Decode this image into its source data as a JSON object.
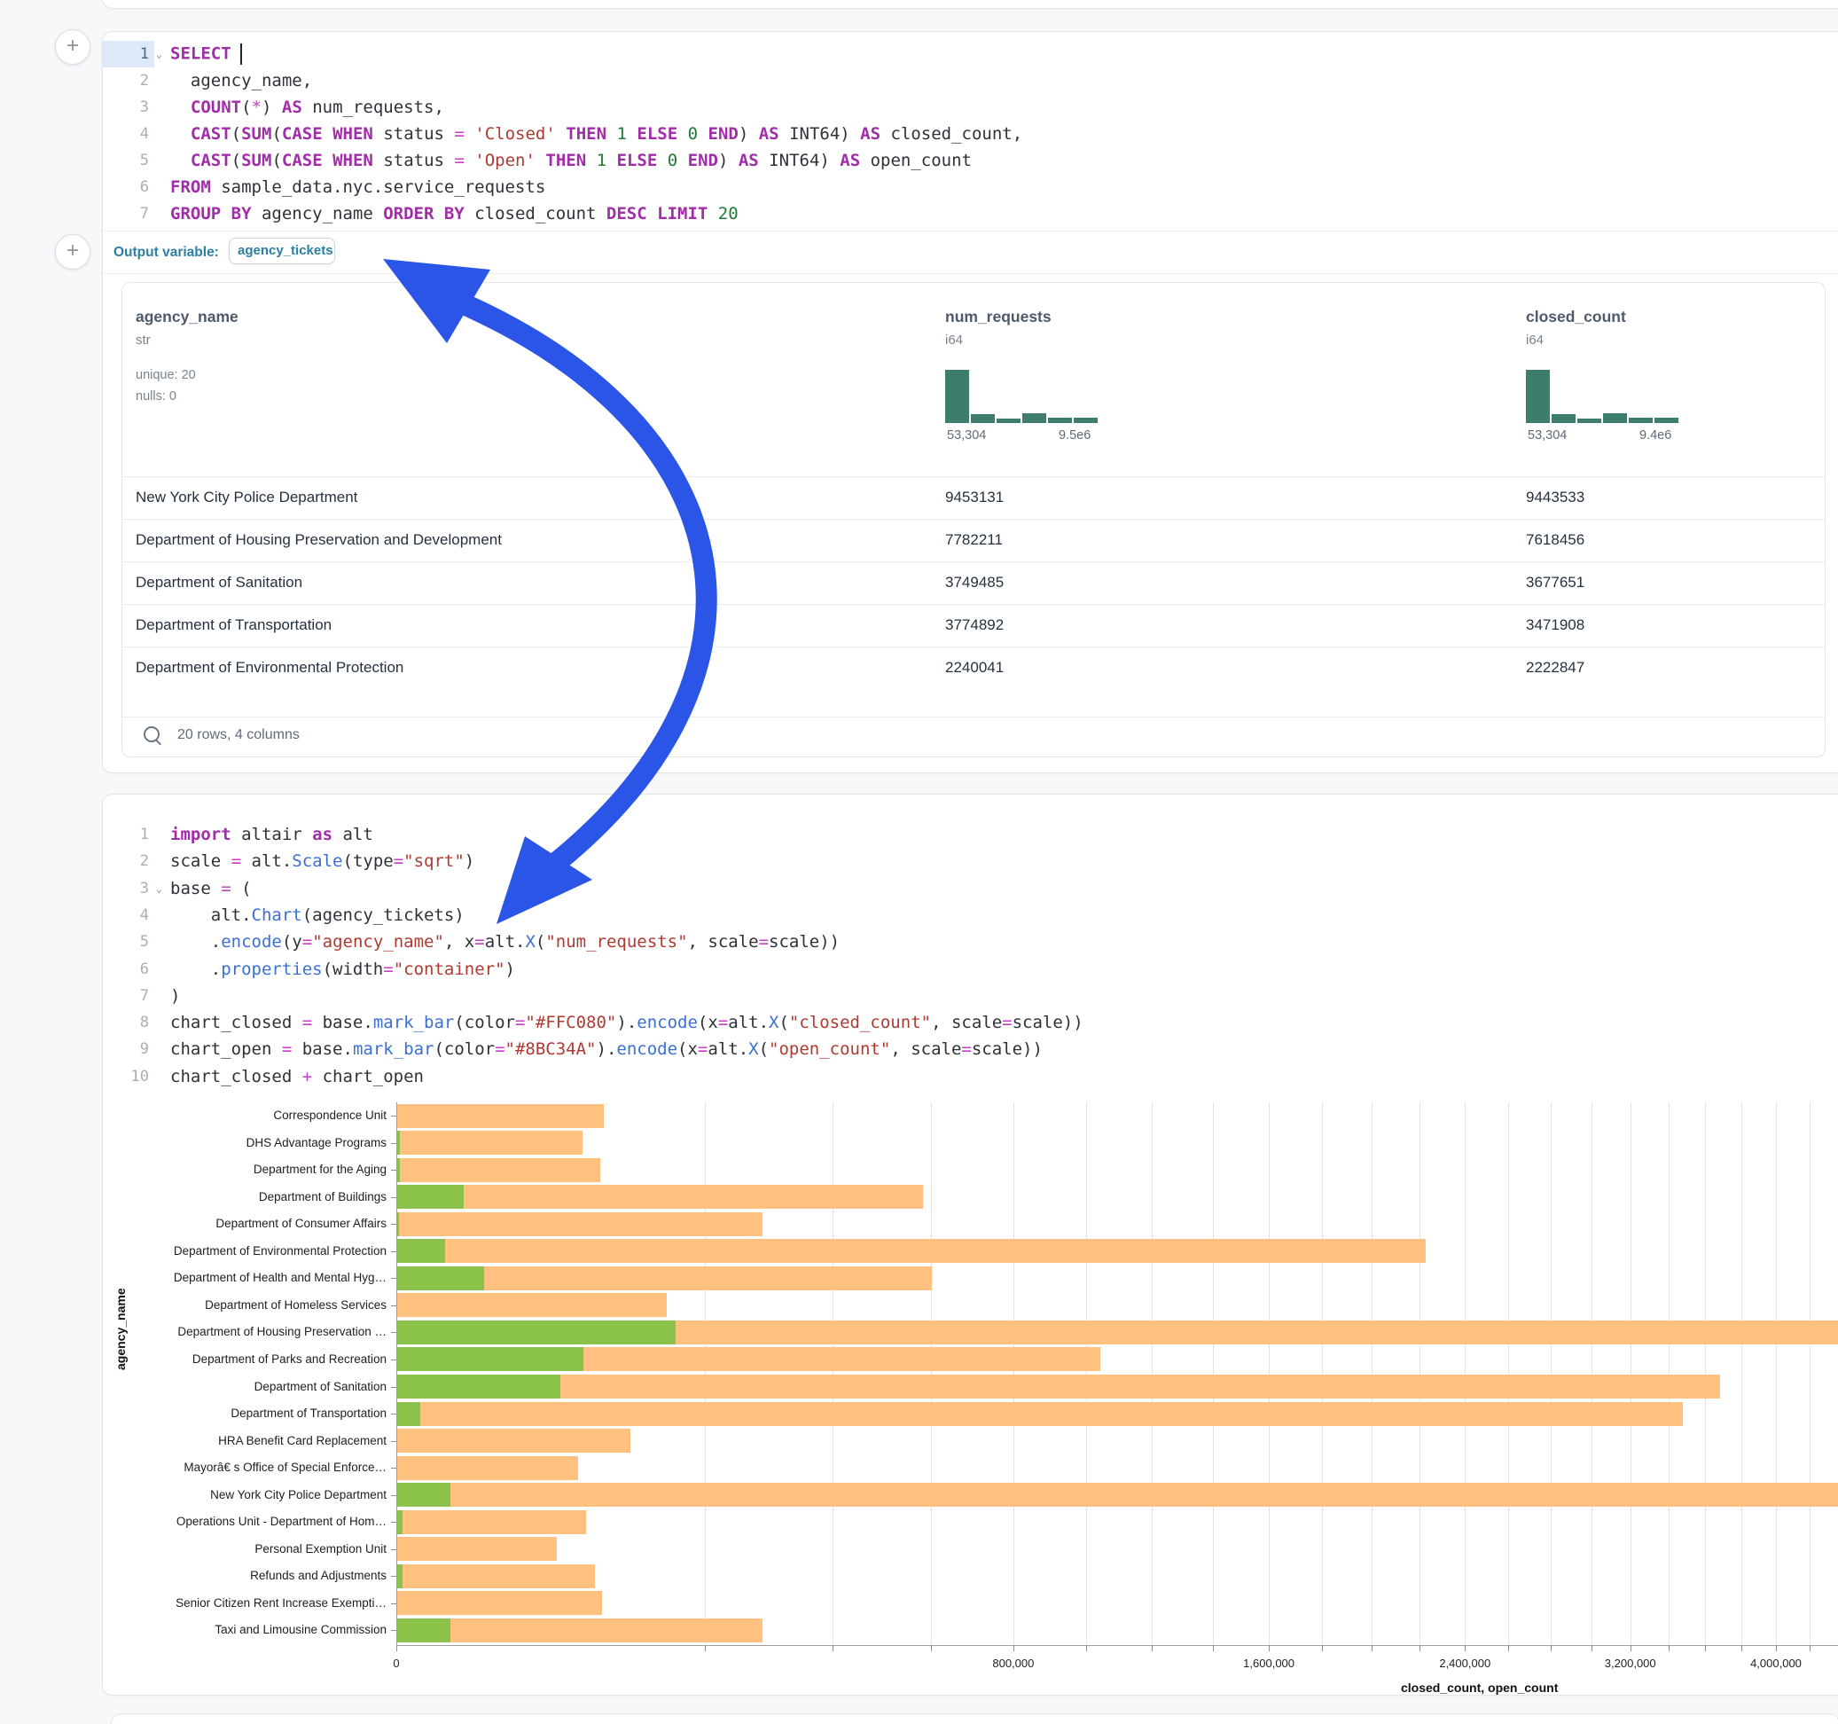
{
  "output_variable": {
    "label": "Output variable:",
    "value": "agency_tickets"
  },
  "add_button_glyph": "+",
  "sql_cell": {
    "lines": [
      {
        "num": "1",
        "active": true,
        "chevron": true,
        "cursor": true,
        "tokens": [
          [
            "kw",
            "SELECT"
          ]
        ]
      },
      {
        "num": "2",
        "tokens": [
          [
            "pl",
            "  agency_name,"
          ]
        ]
      },
      {
        "num": "3",
        "tokens": [
          [
            "pl",
            "  "
          ],
          [
            "kw",
            "COUNT"
          ],
          [
            "pl",
            "("
          ],
          [
            "op",
            "*"
          ],
          [
            "pl",
            ") "
          ],
          [
            "kw",
            "AS"
          ],
          [
            "pl",
            " num_requests,"
          ]
        ]
      },
      {
        "num": "4",
        "tokens": [
          [
            "pl",
            "  "
          ],
          [
            "kw",
            "CAST"
          ],
          [
            "pl",
            "("
          ],
          [
            "kw",
            "SUM"
          ],
          [
            "pl",
            "("
          ],
          [
            "kw",
            "CASE"
          ],
          [
            "pl",
            " "
          ],
          [
            "kw",
            "WHEN"
          ],
          [
            "pl",
            " status "
          ],
          [
            "op",
            "="
          ],
          [
            "pl",
            " "
          ],
          [
            "str",
            "'Closed'"
          ],
          [
            "pl",
            " "
          ],
          [
            "kw",
            "THEN"
          ],
          [
            "pl",
            " "
          ],
          [
            "num",
            "1"
          ],
          [
            "pl",
            " "
          ],
          [
            "kw",
            "ELSE"
          ],
          [
            "pl",
            " "
          ],
          [
            "num",
            "0"
          ],
          [
            "pl",
            " "
          ],
          [
            "kw",
            "END"
          ],
          [
            "pl",
            ") "
          ],
          [
            "kw",
            "AS"
          ],
          [
            "pl",
            " INT64) "
          ],
          [
            "kw",
            "AS"
          ],
          [
            "pl",
            " closed_count,"
          ]
        ]
      },
      {
        "num": "5",
        "tokens": [
          [
            "pl",
            "  "
          ],
          [
            "kw",
            "CAST"
          ],
          [
            "pl",
            "("
          ],
          [
            "kw",
            "SUM"
          ],
          [
            "pl",
            "("
          ],
          [
            "kw",
            "CASE"
          ],
          [
            "pl",
            " "
          ],
          [
            "kw",
            "WHEN"
          ],
          [
            "pl",
            " status "
          ],
          [
            "op",
            "="
          ],
          [
            "pl",
            " "
          ],
          [
            "str",
            "'Open'"
          ],
          [
            "pl",
            " "
          ],
          [
            "kw",
            "THEN"
          ],
          [
            "pl",
            " "
          ],
          [
            "num",
            "1"
          ],
          [
            "pl",
            " "
          ],
          [
            "kw",
            "ELSE"
          ],
          [
            "pl",
            " "
          ],
          [
            "num",
            "0"
          ],
          [
            "pl",
            " "
          ],
          [
            "kw",
            "END"
          ],
          [
            "pl",
            ") "
          ],
          [
            "kw",
            "AS"
          ],
          [
            "pl",
            " INT64) "
          ],
          [
            "kw",
            "AS"
          ],
          [
            "pl",
            " open_count"
          ]
        ]
      },
      {
        "num": "6",
        "tokens": [
          [
            "kw",
            "FROM"
          ],
          [
            "pl",
            " sample_data.nyc.service_requests"
          ]
        ]
      },
      {
        "num": "7",
        "tokens": [
          [
            "kw",
            "GROUP BY"
          ],
          [
            "pl",
            " agency_name "
          ],
          [
            "kw",
            "ORDER BY"
          ],
          [
            "pl",
            " closed_count "
          ],
          [
            "kw",
            "DESC"
          ],
          [
            "pl",
            " "
          ],
          [
            "kw",
            "LIMIT"
          ],
          [
            "pl",
            " "
          ],
          [
            "num",
            "20"
          ]
        ]
      }
    ]
  },
  "table": {
    "columns": [
      {
        "name": "agency_name",
        "type": "str",
        "meta": [
          "unique: 20",
          "nulls: 0"
        ]
      },
      {
        "name": "num_requests",
        "type": "i64",
        "histogram": {
          "bars": [
            1,
            0.16,
            0.09,
            0.18,
            0.1,
            0.1
          ],
          "min_label": "53,304",
          "max_label": "9.5e6"
        }
      },
      {
        "name": "closed_count",
        "type": "i64",
        "histogram": {
          "bars": [
            1,
            0.16,
            0.09,
            0.18,
            0.1,
            0.1
          ],
          "min_label": "53,304",
          "max_label": "9.4e6"
        }
      }
    ],
    "rows": [
      [
        "New York City Police Department",
        "9453131",
        "9443533"
      ],
      [
        "Department of Housing Preservation and Development",
        "7782211",
        "7618456"
      ],
      [
        "Department of Sanitation",
        "3749485",
        "3677651"
      ],
      [
        "Department of Transportation",
        "3774892",
        "3471908"
      ],
      [
        "Department of Environmental Protection",
        "2240041",
        "2222847"
      ]
    ],
    "footer": "20 rows, 4 columns"
  },
  "python_cell": {
    "lines": [
      {
        "num": "1",
        "tokens": [
          [
            "kw",
            "import"
          ],
          [
            "pl",
            " altair "
          ],
          [
            "kw",
            "as"
          ],
          [
            "pl",
            " alt"
          ]
        ]
      },
      {
        "num": "2",
        "tokens": [
          [
            "pl",
            "scale "
          ],
          [
            "op",
            "="
          ],
          [
            "pl",
            " alt."
          ],
          [
            "fn",
            "Scale"
          ],
          [
            "pl",
            "(type"
          ],
          [
            "op",
            "="
          ],
          [
            "str",
            "\"sqrt\""
          ],
          [
            "pl",
            ")"
          ]
        ]
      },
      {
        "num": "3",
        "chevron": true,
        "tokens": [
          [
            "pl",
            "base "
          ],
          [
            "op",
            "="
          ],
          [
            "pl",
            " ("
          ]
        ]
      },
      {
        "num": "4",
        "tokens": [
          [
            "pl",
            "    alt."
          ],
          [
            "fn",
            "Chart"
          ],
          [
            "pl",
            "(agency_tickets)"
          ]
        ]
      },
      {
        "num": "5",
        "tokens": [
          [
            "pl",
            "    ."
          ],
          [
            "fn",
            "encode"
          ],
          [
            "pl",
            "(y"
          ],
          [
            "op",
            "="
          ],
          [
            "str",
            "\"agency_name\""
          ],
          [
            "pl",
            ", x"
          ],
          [
            "op",
            "="
          ],
          [
            "pl",
            "alt."
          ],
          [
            "fn",
            "X"
          ],
          [
            "pl",
            "("
          ],
          [
            "str",
            "\"num_requests\""
          ],
          [
            "pl",
            ", scale"
          ],
          [
            "op",
            "="
          ],
          [
            "pl",
            "scale))"
          ]
        ]
      },
      {
        "num": "6",
        "tokens": [
          [
            "pl",
            "    ."
          ],
          [
            "fn",
            "properties"
          ],
          [
            "pl",
            "(width"
          ],
          [
            "op",
            "="
          ],
          [
            "str",
            "\"container\""
          ],
          [
            "pl",
            ")"
          ]
        ]
      },
      {
        "num": "7",
        "tokens": [
          [
            "pl",
            ")"
          ]
        ]
      },
      {
        "num": "8",
        "tokens": [
          [
            "pl",
            "chart_closed "
          ],
          [
            "op",
            "="
          ],
          [
            "pl",
            " base."
          ],
          [
            "fn",
            "mark_bar"
          ],
          [
            "pl",
            "(color"
          ],
          [
            "op",
            "="
          ],
          [
            "str",
            "\"#FFC080\""
          ],
          [
            "pl",
            ")."
          ],
          [
            "fn",
            "encode"
          ],
          [
            "pl",
            "(x"
          ],
          [
            "op",
            "="
          ],
          [
            "pl",
            "alt."
          ],
          [
            "fn",
            "X"
          ],
          [
            "pl",
            "("
          ],
          [
            "str",
            "\"closed_count\""
          ],
          [
            "pl",
            ", scale"
          ],
          [
            "op",
            "="
          ],
          [
            "pl",
            "scale))"
          ]
        ]
      },
      {
        "num": "9",
        "tokens": [
          [
            "pl",
            "chart_open "
          ],
          [
            "op",
            "="
          ],
          [
            "pl",
            " base."
          ],
          [
            "fn",
            "mark_bar"
          ],
          [
            "pl",
            "(color"
          ],
          [
            "op",
            "="
          ],
          [
            "str",
            "\"#8BC34A\""
          ],
          [
            "pl",
            ")."
          ],
          [
            "fn",
            "encode"
          ],
          [
            "pl",
            "(x"
          ],
          [
            "op",
            "="
          ],
          [
            "pl",
            "alt."
          ],
          [
            "fn",
            "X"
          ],
          [
            "pl",
            "("
          ],
          [
            "str",
            "\"open_count\""
          ],
          [
            "pl",
            ", scale"
          ],
          [
            "op",
            "="
          ],
          [
            "pl",
            "scale))"
          ]
        ]
      },
      {
        "num": "10",
        "tokens": [
          [
            "pl",
            "chart_closed "
          ],
          [
            "op",
            "+"
          ],
          [
            "pl",
            " chart_open"
          ]
        ]
      }
    ]
  },
  "chart_data": {
    "type": "bar",
    "orientation": "horizontal",
    "x_scale": "sqrt",
    "xlabel": "closed_count, open_count",
    "ylabel": "agency_name",
    "x_tick_values": [
      0,
      800000,
      1600000,
      2400000,
      3200000,
      4000000
    ],
    "x_tick_labels": [
      "0",
      "800,000",
      "1,600,000",
      "2,400,000",
      "3,200,000",
      "4,000,000"
    ],
    "minor_tick_step": 200000,
    "grid": true,
    "legend": false,
    "categories": [
      "Correspondence Unit",
      "DHS Advantage Programs",
      "Department for the Aging",
      "Department of Buildings",
      "Department of Consumer Affairs",
      "Department of Environmental Protection",
      "Department of Health and Mental Hyg…",
      "Department of Homeless Services",
      "Department of Housing Preservation …",
      "Department of Parks and Recreation",
      "Department of Sanitation",
      "Department of Transportation",
      "HRA Benefit Card Replacement",
      "Mayorâ€ s Office of Special Enforce…",
      "New York City Police Department",
      "Operations Unit - Department of Hom…",
      "Personal Exemption Unit",
      "Refunds and Adjustments",
      "Senior Citizen Rent Increase Exempti…",
      "Taxi and Limousine Commission"
    ],
    "series": [
      {
        "name": "closed_count",
        "color": "#FFC080",
        "values": [
          90000,
          72000,
          87000,
          580000,
          280000,
          2222847,
          600000,
          153000,
          7618456,
          1040000,
          3677651,
          3471908,
          114000,
          69000,
          9443533,
          75000,
          53304,
          82000,
          88000,
          280000
        ]
      },
      {
        "name": "open_count",
        "color": "#8BC34A",
        "values": [
          0,
          20,
          15,
          9300,
          10,
          4800,
          16000,
          0,
          163000,
          73000,
          56000,
          1100,
          0,
          0,
          5900,
          60,
          0,
          60,
          0,
          6000
        ]
      }
    ]
  },
  "arrow_color": "#2a55e6"
}
